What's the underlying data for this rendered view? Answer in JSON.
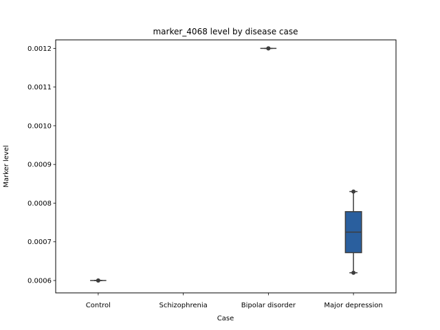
{
  "chart_data": {
    "type": "box",
    "title": "marker_4068 level by disease case",
    "xlabel": "Case",
    "ylabel": "Marker level",
    "categories": [
      "Control",
      "Schizophrenia",
      "Bipolar disorder",
      "Major depression"
    ],
    "ylim": [
      0.000568,
      0.001222
    ],
    "yticks": [
      0.0006,
      0.0007,
      0.0008,
      0.0009,
      0.001,
      0.0011,
      0.0012
    ],
    "ytick_labels": [
      "0.0006",
      "0.0007",
      "0.0008",
      "0.0009",
      "0.0010",
      "0.0011",
      "0.0012"
    ],
    "boxes": [
      {
        "category": "Control",
        "min": 0.0006,
        "q1": 0.0006,
        "median": 0.0006,
        "q3": 0.0006,
        "max": 0.0006
      },
      {
        "category": "Schizophrenia",
        "min": null,
        "q1": null,
        "median": null,
        "q3": null,
        "max": null
      },
      {
        "category": "Bipolar disorder",
        "min": 0.0012,
        "q1": 0.0012,
        "median": 0.0012,
        "q3": 0.0012,
        "max": 0.0012
      },
      {
        "category": "Major depression",
        "min": 0.00062,
        "q1": 0.000672,
        "median": 0.000725,
        "q3": 0.000778,
        "max": 0.00083
      }
    ],
    "box_color": "#2a5f9e",
    "line_color": "#3d3d3d",
    "grid": false,
    "legend": "none"
  }
}
